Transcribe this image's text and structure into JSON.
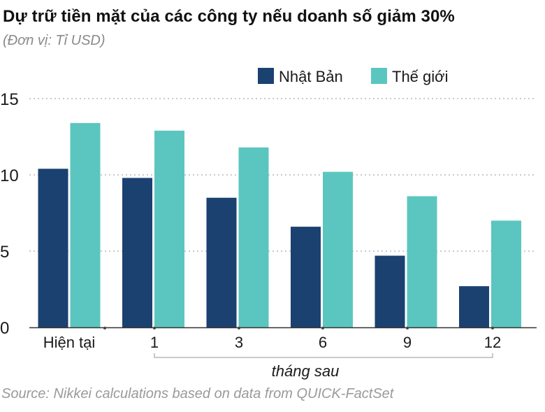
{
  "header": {
    "title": "Dự trữ tiền mặt của các công ty nếu doanh số giảm 30%",
    "subtitle": "(Đơn vị: Tỉ USD)"
  },
  "footer": {
    "source": "Source: Nikkei calculations based on data from QUICK-FactSet"
  },
  "chart_data": {
    "type": "bar",
    "title": "Dự trữ tiền mặt của các công ty nếu doanh số giảm 30%",
    "subtitle": "(Đơn vị: Tỉ USD)",
    "categories": [
      "Hiện tại",
      "1",
      "3",
      "6",
      "9",
      "12"
    ],
    "xlabel": "tháng sau",
    "ylabel": "",
    "ylim": [
      0,
      15
    ],
    "yticks": [
      0,
      5,
      10,
      15
    ],
    "grid": true,
    "legend_position": "top-right",
    "series": [
      {
        "name": "Nhật Bản",
        "color": "#1b4170",
        "values": [
          10.4,
          9.8,
          8.5,
          6.6,
          4.7,
          2.7
        ]
      },
      {
        "name": "Thế giới",
        "color": "#5bc6bf",
        "values": [
          13.4,
          12.9,
          11.8,
          10.2,
          8.6,
          7.0
        ]
      }
    ]
  }
}
